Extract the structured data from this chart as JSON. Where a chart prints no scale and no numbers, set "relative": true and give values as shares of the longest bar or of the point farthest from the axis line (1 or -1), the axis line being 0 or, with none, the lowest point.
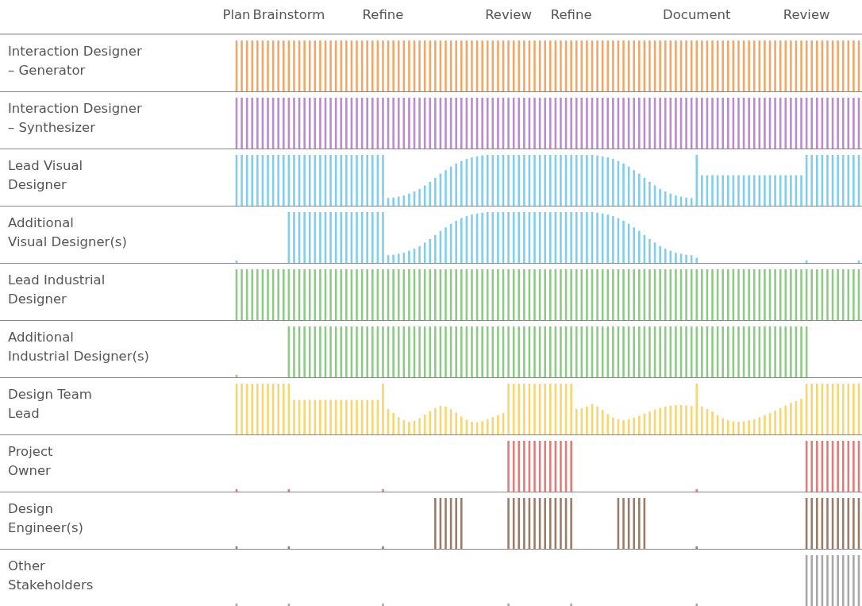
{
  "chart_data": [
    {
      "type": "bar",
      "ylabel": "Interaction Designer\n– Generator",
      "relative": true,
      "tick_labels": "x",
      "color": "#f2a766",
      "categories": [
        "Plan",
        null,
        null,
        null,
        null,
        null,
        null,
        null,
        null,
        null,
        "Brainstorm",
        null,
        null,
        null,
        null,
        null,
        null,
        null,
        null,
        null,
        null,
        null,
        null,
        null,
        null,
        null,
        null,
        null,
        "Refine",
        null,
        null,
        null,
        null,
        null,
        null,
        null,
        null,
        null,
        null,
        null,
        null,
        null,
        null,
        null,
        null,
        null,
        null,
        null,
        null,
        null,
        null,
        null,
        "Review",
        null,
        null,
        null,
        null,
        null,
        null,
        null,
        null,
        null,
        null,
        null,
        "Refine",
        null,
        null,
        null,
        null,
        null,
        null,
        null,
        null,
        null,
        null,
        null,
        null,
        null,
        null,
        null,
        null,
        null,
        null,
        null,
        null,
        null,
        null,
        null,
        "Document",
        null,
        null,
        null,
        null,
        null,
        null,
        null,
        null,
        null,
        null,
        null,
        null,
        null,
        null,
        null,
        null,
        null,
        null,
        null,
        null,
        "Review",
        null,
        null,
        null,
        null,
        null,
        null,
        null,
        null,
        null,
        null
      ],
      "values": [
        1,
        1,
        1,
        1,
        1,
        1,
        1,
        1,
        1,
        1,
        1,
        1,
        1,
        1,
        1,
        1,
        1,
        1,
        1,
        1,
        1,
        1,
        1,
        1,
        1,
        1,
        1,
        1,
        1,
        1,
        1,
        1,
        1,
        1,
        1,
        1,
        1,
        1,
        1,
        1,
        1,
        1,
        1,
        1,
        1,
        1,
        1,
        1,
        1,
        1,
        1,
        1,
        1,
        1,
        1,
        1,
        1,
        1,
        1,
        1,
        1,
        1,
        1,
        1,
        1,
        1,
        1,
        1,
        1,
        1,
        1,
        1,
        1,
        1,
        1,
        1,
        1,
        1,
        1,
        1,
        1,
        1,
        1,
        1,
        1,
        1,
        1,
        1,
        1,
        1,
        1,
        1,
        1,
        1,
        1,
        1,
        1,
        1,
        1,
        1,
        1,
        1,
        1,
        1,
        1,
        1,
        1,
        1,
        1,
        1,
        1,
        1,
        1,
        1,
        1,
        1,
        1,
        1,
        1,
        1
      ]
    },
    {
      "type": "bar",
      "ylabel": "Interaction Designer\n– Synthesizer",
      "relative": true,
      "tick_labels": false,
      "color": "#b98bcf",
      "categories": [
        null,
        null,
        null,
        null,
        null,
        null,
        null,
        null,
        null,
        null,
        null,
        null,
        null,
        null,
        null,
        null,
        null,
        null,
        null,
        null,
        null,
        null,
        null,
        null,
        null,
        null,
        null,
        null,
        null,
        null,
        null,
        null,
        null,
        null,
        null,
        null,
        null,
        null,
        null,
        null,
        null,
        null,
        null,
        null,
        null,
        null,
        null,
        null,
        null,
        null,
        null,
        null,
        null,
        null,
        null,
        null,
        null,
        null,
        null,
        null,
        null,
        null,
        null,
        null,
        null,
        null,
        null,
        null,
        null,
        null,
        null,
        null,
        null,
        null,
        null,
        null,
        null,
        null,
        null,
        null,
        null,
        null,
        null,
        null,
        null,
        null,
        null,
        null,
        null,
        null,
        null,
        null,
        null,
        null,
        null,
        null,
        null,
        null,
        null,
        null,
        null,
        null,
        null,
        null,
        null,
        null,
        null,
        null,
        null,
        null,
        null,
        null,
        null,
        null,
        null,
        null,
        null,
        null,
        null,
        null
      ],
      "values": [
        1,
        1,
        1,
        1,
        1,
        1,
        1,
        1,
        1,
        1,
        1,
        1,
        1,
        1,
        1,
        1,
        1,
        1,
        1,
        1,
        1,
        1,
        1,
        1,
        1,
        1,
        1,
        1,
        1,
        1,
        1,
        1,
        1,
        1,
        1,
        1,
        1,
        1,
        1,
        1,
        1,
        1,
        1,
        1,
        1,
        1,
        1,
        1,
        1,
        1,
        1,
        1,
        1,
        1,
        1,
        1,
        1,
        1,
        1,
        1,
        1,
        1,
        1,
        1,
        1,
        1,
        1,
        1,
        1,
        1,
        1,
        1,
        1,
        1,
        1,
        1,
        1,
        1,
        1,
        1,
        1,
        1,
        1,
        1,
        1,
        1,
        1,
        1,
        1,
        1,
        1,
        1,
        1,
        1,
        1,
        1,
        1,
        1,
        1,
        1,
        1,
        1,
        1,
        1,
        1,
        1,
        1,
        1,
        1,
        1,
        1,
        1,
        1,
        1,
        1,
        1,
        1,
        1,
        1,
        1
      ]
    },
    {
      "type": "bar",
      "ylabel": "Lead Visual\nDesigner",
      "relative": true,
      "tick_labels": false,
      "color": "#7fcdef",
      "categories": [
        null,
        null,
        null,
        null,
        null,
        null,
        null,
        null,
        null,
        null,
        null,
        null,
        null,
        null,
        null,
        null,
        null,
        null,
        null,
        null,
        null,
        null,
        null,
        null,
        null,
        null,
        null,
        null,
        null,
        null,
        null,
        null,
        null,
        null,
        null,
        null,
        null,
        null,
        null,
        null,
        null,
        null,
        null,
        null,
        null,
        null,
        null,
        null,
        null,
        null,
        null,
        null,
        null,
        null,
        null,
        null,
        null,
        null,
        null,
        null,
        null,
        null,
        null,
        null,
        null,
        null,
        null,
        null,
        null,
        null,
        null,
        null,
        null,
        null,
        null,
        null,
        null,
        null,
        null,
        null,
        null,
        null,
        null,
        null,
        null,
        null,
        null,
        null,
        null,
        null,
        null,
        null,
        null,
        null,
        null,
        null,
        null,
        null,
        null,
        null,
        null,
        null,
        null,
        null,
        null,
        null,
        null,
        null,
        null,
        null,
        null,
        null,
        null,
        null,
        null,
        null,
        null,
        null,
        null,
        null
      ],
      "values": [
        1,
        1,
        1,
        1,
        1,
        1,
        1,
        1,
        1,
        1,
        1,
        1,
        1,
        1,
        1,
        1,
        1,
        1,
        1,
        1,
        1,
        1,
        1,
        1,
        1,
        1,
        1,
        1,
        1,
        0.15,
        0.16,
        0.18,
        0.2,
        0.24,
        0.28,
        0.33,
        0.4,
        0.47,
        0.55,
        0.63,
        0.7,
        0.77,
        0.83,
        0.88,
        0.92,
        0.95,
        0.97,
        0.99,
        1,
        1,
        1,
        1,
        1,
        1,
        1,
        1,
        1,
        1,
        1,
        1,
        1,
        1,
        1,
        1,
        1,
        1,
        1,
        1,
        1,
        0.99,
        0.97,
        0.95,
        0.92,
        0.88,
        0.83,
        0.77,
        0.7,
        0.63,
        0.55,
        0.47,
        0.4,
        0.33,
        0.28,
        0.24,
        0.2,
        0.18,
        0.16,
        0.15,
        1,
        0.6,
        0.6,
        0.6,
        0.6,
        0.6,
        0.6,
        0.6,
        0.6,
        0.6,
        0.6,
        0.6,
        0.6,
        0.6,
        0.6,
        0.6,
        0.6,
        0.6,
        0.6,
        0.6,
        0.6,
        1,
        1,
        1,
        1,
        1,
        1,
        1,
        1,
        1,
        1,
        1
      ]
    },
    {
      "type": "bar",
      "ylabel": "Additional\nVisual Designer(s)",
      "relative": true,
      "tick_labels": false,
      "color": "#7fcdef",
      "categories": [
        null,
        null,
        null,
        null,
        null,
        null,
        null,
        null,
        null,
        null,
        null,
        null,
        null,
        null,
        null,
        null,
        null,
        null,
        null,
        null,
        null,
        null,
        null,
        null,
        null,
        null,
        null,
        null,
        null,
        null,
        null,
        null,
        null,
        null,
        null,
        null,
        null,
        null,
        null,
        null,
        null,
        null,
        null,
        null,
        null,
        null,
        null,
        null,
        null,
        null,
        null,
        null,
        null,
        null,
        null,
        null,
        null,
        null,
        null,
        null,
        null,
        null,
        null,
        null,
        null,
        null,
        null,
        null,
        null,
        null,
        null,
        null,
        null,
        null,
        null,
        null,
        null,
        null,
        null,
        null,
        null,
        null,
        null,
        null,
        null,
        null,
        null,
        null,
        null,
        null,
        null,
        null,
        null,
        null,
        null,
        null,
        null,
        null,
        null,
        null,
        null,
        null,
        null,
        null,
        null,
        null,
        null,
        null,
        null,
        null,
        null,
        null,
        null,
        null,
        null,
        null,
        null,
        null,
        null,
        null
      ],
      "values": [
        0.05,
        0,
        0,
        0,
        0,
        0,
        0,
        0,
        0,
        0,
        1,
        1,
        1,
        1,
        1,
        1,
        1,
        1,
        1,
        1,
        1,
        1,
        1,
        1,
        1,
        1,
        1,
        1,
        1,
        0.15,
        0.16,
        0.18,
        0.2,
        0.24,
        0.28,
        0.33,
        0.4,
        0.47,
        0.55,
        0.63,
        0.7,
        0.77,
        0.83,
        0.88,
        0.92,
        0.95,
        0.97,
        0.99,
        1,
        1,
        1,
        1,
        1,
        1,
        1,
        1,
        1,
        1,
        1,
        1,
        1,
        1,
        1,
        1,
        1,
        1,
        1,
        1,
        1,
        0.99,
        0.97,
        0.95,
        0.92,
        0.88,
        0.83,
        0.77,
        0.7,
        0.63,
        0.55,
        0.47,
        0.4,
        0.33,
        0.28,
        0.24,
        0.2,
        0.18,
        0.16,
        0.15,
        0.1,
        0,
        0,
        0,
        0,
        0,
        0,
        0,
        0,
        0,
        0,
        0,
        0,
        0,
        0,
        0,
        0,
        0,
        0,
        0,
        0,
        0.05,
        0,
        0,
        0,
        0,
        0,
        0,
        0,
        0,
        0,
        0.05
      ]
    },
    {
      "type": "bar",
      "ylabel": "Lead Industrial\nDesigner",
      "relative": true,
      "tick_labels": false,
      "color": "#8ccb84",
      "categories": [
        null,
        null,
        null,
        null,
        null,
        null,
        null,
        null,
        null,
        null,
        null,
        null,
        null,
        null,
        null,
        null,
        null,
        null,
        null,
        null,
        null,
        null,
        null,
        null,
        null,
        null,
        null,
        null,
        null,
        null,
        null,
        null,
        null,
        null,
        null,
        null,
        null,
        null,
        null,
        null,
        null,
        null,
        null,
        null,
        null,
        null,
        null,
        null,
        null,
        null,
        null,
        null,
        null,
        null,
        null,
        null,
        null,
        null,
        null,
        null,
        null,
        null,
        null,
        null,
        null,
        null,
        null,
        null,
        null,
        null,
        null,
        null,
        null,
        null,
        null,
        null,
        null,
        null,
        null,
        null,
        null,
        null,
        null,
        null,
        null,
        null,
        null,
        null,
        null,
        null,
        null,
        null,
        null,
        null,
        null,
        null,
        null,
        null,
        null,
        null,
        null,
        null,
        null,
        null,
        null,
        null,
        null,
        null,
        null,
        null,
        null,
        null,
        null,
        null,
        null,
        null,
        null,
        null,
        null,
        null
      ],
      "values": [
        1,
        1,
        1,
        1,
        1,
        1,
        1,
        1,
        1,
        1,
        1,
        1,
        1,
        1,
        1,
        1,
        1,
        1,
        1,
        1,
        1,
        1,
        1,
        1,
        1,
        1,
        1,
        1,
        1,
        1,
        1,
        1,
        1,
        1,
        1,
        1,
        1,
        1,
        1,
        1,
        1,
        1,
        1,
        1,
        1,
        1,
        1,
        1,
        1,
        1,
        1,
        1,
        1,
        1,
        1,
        1,
        1,
        1,
        1,
        1,
        1,
        1,
        1,
        1,
        1,
        1,
        1,
        1,
        1,
        1,
        1,
        1,
        1,
        1,
        1,
        1,
        1,
        1,
        1,
        1,
        1,
        1,
        1,
        1,
        1,
        1,
        1,
        1,
        1,
        1,
        1,
        1,
        1,
        1,
        1,
        1,
        1,
        1,
        1,
        1,
        1,
        1,
        1,
        1,
        1,
        1,
        1,
        1,
        1,
        1,
        1,
        1,
        1,
        1,
        1,
        1,
        1,
        1,
        1,
        1
      ]
    },
    {
      "type": "bar",
      "ylabel": "Additional\nIndustrial Designer(s)",
      "relative": true,
      "tick_labels": false,
      "color": "#8ccb84",
      "categories": [
        null,
        null,
        null,
        null,
        null,
        null,
        null,
        null,
        null,
        null,
        null,
        null,
        null,
        null,
        null,
        null,
        null,
        null,
        null,
        null,
        null,
        null,
        null,
        null,
        null,
        null,
        null,
        null,
        null,
        null,
        null,
        null,
        null,
        null,
        null,
        null,
        null,
        null,
        null,
        null,
        null,
        null,
        null,
        null,
        null,
        null,
        null,
        null,
        null,
        null,
        null,
        null,
        null,
        null,
        null,
        null,
        null,
        null,
        null,
        null,
        null,
        null,
        null,
        null,
        null,
        null,
        null,
        null,
        null,
        null,
        null,
        null,
        null,
        null,
        null,
        null,
        null,
        null,
        null,
        null,
        null,
        null,
        null,
        null,
        null,
        null,
        null,
        null,
        null,
        null,
        null,
        null,
        null,
        null,
        null,
        null,
        null,
        null,
        null,
        null,
        null,
        null,
        null,
        null,
        null,
        null,
        null,
        null,
        null,
        null,
        null,
        null,
        null,
        null,
        null,
        null,
        null,
        null,
        null,
        null
      ],
      "values": [
        0.05,
        0,
        0,
        0,
        0,
        0,
        0,
        0,
        0,
        0,
        1,
        1,
        1,
        1,
        1,
        1,
        1,
        1,
        1,
        1,
        1,
        1,
        1,
        1,
        1,
        1,
        1,
        1,
        1,
        1,
        1,
        1,
        1,
        1,
        1,
        1,
        1,
        1,
        1,
        1,
        1,
        1,
        1,
        1,
        1,
        1,
        1,
        1,
        1,
        1,
        1,
        1,
        1,
        1,
        1,
        1,
        1,
        1,
        1,
        1,
        1,
        1,
        1,
        1,
        1,
        1,
        1,
        1,
        1,
        1,
        1,
        1,
        1,
        1,
        1,
        1,
        1,
        1,
        1,
        1,
        1,
        1,
        1,
        1,
        1,
        1,
        1,
        1,
        1,
        1,
        1,
        1,
        1,
        1,
        1,
        1,
        1,
        1,
        1,
        1,
        1,
        1,
        1,
        1,
        1,
        1,
        1,
        1,
        1,
        1,
        0,
        0,
        0,
        0,
        0,
        0,
        0,
        0,
        0,
        0
      ]
    },
    {
      "type": "bar",
      "ylabel": "Design Team\nLead",
      "relative": true,
      "tick_labels": false,
      "color": "#f9d56e",
      "categories": [
        null,
        null,
        null,
        null,
        null,
        null,
        null,
        null,
        null,
        null,
        null,
        null,
        null,
        null,
        null,
        null,
        null,
        null,
        null,
        null,
        null,
        null,
        null,
        null,
        null,
        null,
        null,
        null,
        null,
        null,
        null,
        null,
        null,
        null,
        null,
        null,
        null,
        null,
        null,
        null,
        null,
        null,
        null,
        null,
        null,
        null,
        null,
        null,
        null,
        null,
        null,
        null,
        null,
        null,
        null,
        null,
        null,
        null,
        null,
        null,
        null,
        null,
        null,
        null,
        null,
        null,
        null,
        null,
        null,
        null,
        null,
        null,
        null,
        null,
        null,
        null,
        null,
        null,
        null,
        null,
        null,
        null,
        null,
        null,
        null,
        null,
        null,
        null,
        null,
        null,
        null,
        null,
        null,
        null,
        null,
        null,
        null,
        null,
        null,
        null,
        null,
        null,
        null,
        null,
        null,
        null,
        null,
        null,
        null,
        null,
        null,
        null,
        null,
        null,
        null,
        null,
        null,
        null,
        null,
        null
      ],
      "values": [
        1,
        1,
        1,
        1,
        1,
        1,
        1,
        1,
        1,
        1,
        1,
        0.68,
        0.68,
        0.68,
        0.68,
        0.68,
        0.68,
        0.68,
        0.68,
        0.68,
        0.68,
        0.68,
        0.68,
        0.68,
        0.68,
        0.68,
        0.68,
        0.68,
        1,
        0.5,
        0.42,
        0.34,
        0.28,
        0.25,
        0.27,
        0.32,
        0.39,
        0.46,
        0.52,
        0.56,
        0.55,
        0.5,
        0.43,
        0.35,
        0.29,
        0.25,
        0.24,
        0.26,
        0.3,
        0.34,
        0.38,
        0.42,
        1,
        1,
        1,
        1,
        1,
        1,
        1,
        1,
        1,
        1,
        1,
        1,
        1,
        0.5,
        0.52,
        0.55,
        0.6,
        0.55,
        0.48,
        0.4,
        0.33,
        0.3,
        0.28,
        0.3,
        0.33,
        0.37,
        0.41,
        0.45,
        0.49,
        0.52,
        0.55,
        0.57,
        0.58,
        0.58,
        0.57,
        0.56,
        1,
        0.55,
        0.5,
        0.45,
        0.38,
        0.32,
        0.28,
        0.26,
        0.25,
        0.26,
        0.28,
        0.3,
        0.34,
        0.38,
        0.42,
        0.47,
        0.52,
        0.57,
        0.62,
        0.66,
        0.7,
        1,
        1,
        1,
        1,
        1,
        1,
        1,
        1,
        1,
        1,
        1
      ]
    },
    {
      "type": "bar",
      "ylabel": "Project\nOwner",
      "relative": true,
      "tick_labels": false,
      "color": "#e37b78",
      "categories": [
        null,
        null,
        null,
        null,
        null,
        null,
        null,
        null,
        null,
        null,
        null,
        null,
        null,
        null,
        null,
        null,
        null,
        null,
        null,
        null,
        null,
        null,
        null,
        null,
        null,
        null,
        null,
        null,
        null,
        null,
        null,
        null,
        null,
        null,
        null,
        null,
        null,
        null,
        null,
        null,
        null,
        null,
        null,
        null,
        null,
        null,
        null,
        null,
        null,
        null,
        null,
        null,
        null,
        null,
        null,
        null,
        null,
        null,
        null,
        null,
        null,
        null,
        null,
        null,
        null,
        null,
        null,
        null,
        null,
        null,
        null,
        null,
        null,
        null,
        null,
        null,
        null,
        null,
        null,
        null,
        null,
        null,
        null,
        null,
        null,
        null,
        null,
        null,
        null,
        null,
        null,
        null,
        null,
        null,
        null,
        null,
        null,
        null,
        null,
        null,
        null,
        null,
        null,
        null,
        null,
        null,
        null,
        null,
        null,
        null,
        null,
        null,
        null,
        null,
        null,
        null,
        null,
        null,
        null,
        null
      ],
      "values": [
        0.05,
        0,
        0,
        0,
        0,
        0,
        0,
        0,
        0,
        0,
        0.05,
        0,
        0,
        0,
        0,
        0,
        0,
        0,
        0,
        0,
        0,
        0,
        0,
        0,
        0,
        0,
        0,
        0,
        0.05,
        0,
        0,
        0,
        0,
        0,
        0,
        0,
        0,
        0,
        0,
        0,
        0,
        0,
        0,
        0,
        0,
        0,
        0,
        0,
        0,
        0,
        0,
        0,
        1,
        1,
        1,
        1,
        1,
        1,
        1,
        1,
        1,
        1,
        1,
        1,
        1,
        0,
        0,
        0,
        0,
        0,
        0,
        0,
        0,
        0,
        0,
        0,
        0,
        0,
        0,
        0,
        0,
        0,
        0,
        0,
        0,
        0,
        0,
        0,
        0.05,
        0,
        0,
        0,
        0,
        0,
        0,
        0,
        0,
        0,
        0,
        0,
        0,
        0,
        0,
        0,
        0,
        0,
        0,
        0,
        0,
        1,
        1,
        1,
        1,
        1,
        1,
        1,
        1,
        1,
        1,
        1
      ]
    },
    {
      "type": "bar",
      "ylabel": "Design\nEngineer(s)",
      "relative": true,
      "tick_labels": false,
      "color": "#9c7b68",
      "categories": [
        null,
        null,
        null,
        null,
        null,
        null,
        null,
        null,
        null,
        null,
        null,
        null,
        null,
        null,
        null,
        null,
        null,
        null,
        null,
        null,
        null,
        null,
        null,
        null,
        null,
        null,
        null,
        null,
        null,
        null,
        null,
        null,
        null,
        null,
        null,
        null,
        null,
        null,
        null,
        null,
        null,
        null,
        null,
        null,
        null,
        null,
        null,
        null,
        null,
        null,
        null,
        null,
        null,
        null,
        null,
        null,
        null,
        null,
        null,
        null,
        null,
        null,
        null,
        null,
        null,
        null,
        null,
        null,
        null,
        null,
        null,
        null,
        null,
        null,
        null,
        null,
        null,
        null,
        null,
        null,
        null,
        null,
        null,
        null,
        null,
        null,
        null,
        null,
        null,
        null,
        null,
        null,
        null,
        null,
        null,
        null,
        null,
        null,
        null,
        null,
        null,
        null,
        null,
        null,
        null,
        null,
        null,
        null,
        null,
        null,
        null,
        null,
        null,
        null,
        null,
        null,
        null,
        null,
        null,
        null
      ],
      "values": [
        0.05,
        0,
        0,
        0,
        0,
        0,
        0,
        0,
        0,
        0,
        0.05,
        0,
        0,
        0,
        0,
        0,
        0,
        0,
        0,
        0,
        0,
        0,
        0,
        0,
        0,
        0,
        0,
        0,
        0.05,
        0,
        0,
        0,
        0,
        0,
        0,
        0,
        0,
        0,
        1,
        1,
        1,
        1,
        1,
        1,
        0,
        0,
        0,
        0,
        0,
        0,
        0,
        0,
        1,
        1,
        1,
        1,
        1,
        1,
        1,
        1,
        1,
        1,
        1,
        1,
        1,
        0,
        0,
        0,
        0,
        0,
        0,
        0,
        0,
        1,
        1,
        1,
        1,
        1,
        1,
        0,
        0,
        0,
        0,
        0,
        0,
        0,
        0,
        0,
        0.05,
        0,
        0,
        0,
        0,
        0,
        0,
        0,
        0,
        0,
        0,
        0,
        0,
        0,
        0,
        0,
        0,
        0,
        0,
        0,
        0,
        1,
        1,
        1,
        1,
        1,
        1,
        1,
        1,
        1,
        1,
        1
      ]
    },
    {
      "type": "bar",
      "ylabel": "Other\nStakeholders",
      "relative": true,
      "tick_labels": false,
      "color": "#a8a8a8",
      "categories": [
        null,
        null,
        null,
        null,
        null,
        null,
        null,
        null,
        null,
        null,
        null,
        null,
        null,
        null,
        null,
        null,
        null,
        null,
        null,
        null,
        null,
        null,
        null,
        null,
        null,
        null,
        null,
        null,
        null,
        null,
        null,
        null,
        null,
        null,
        null,
        null,
        null,
        null,
        null,
        null,
        null,
        null,
        null,
        null,
        null,
        null,
        null,
        null,
        null,
        null,
        null,
        null,
        null,
        null,
        null,
        null,
        null,
        null,
        null,
        null,
        null,
        null,
        null,
        null,
        null,
        null,
        null,
        null,
        null,
        null,
        null,
        null,
        null,
        null,
        null,
        null,
        null,
        null,
        null,
        null,
        null,
        null,
        null,
        null,
        null,
        null,
        null,
        null,
        null,
        null,
        null,
        null,
        null,
        null,
        null,
        null,
        null,
        null,
        null,
        null,
        null,
        null,
        null,
        null,
        null,
        null,
        null,
        null,
        null,
        null,
        null,
        null,
        null,
        null,
        null,
        null,
        null,
        null,
        null,
        null
      ],
      "values": [
        0.05,
        0,
        0,
        0,
        0,
        0,
        0,
        0,
        0,
        0,
        0.05,
        0,
        0,
        0,
        0,
        0,
        0,
        0,
        0,
        0,
        0,
        0,
        0,
        0,
        0,
        0,
        0,
        0,
        0.05,
        0,
        0,
        0,
        0,
        0,
        0,
        0,
        0,
        0,
        0,
        0,
        0,
        0,
        0,
        0,
        0,
        0,
        0,
        0,
        0,
        0,
        0,
        0,
        0.05,
        0,
        0,
        0,
        0,
        0,
        0,
        0,
        0,
        0,
        0,
        0,
        0.05,
        0,
        0,
        0,
        0,
        0,
        0,
        0,
        0,
        0,
        0,
        0,
        0,
        0,
        0,
        0,
        0,
        0,
        0,
        0,
        0,
        0,
        0,
        0,
        0.05,
        0,
        0,
        0,
        0,
        0,
        0,
        0,
        0,
        0,
        0,
        0,
        0,
        0,
        0,
        0,
        0,
        0,
        0,
        0,
        0,
        1,
        1,
        1,
        1,
        1,
        1,
        1,
        1,
        1,
        1,
        1
      ]
    }
  ]
}
